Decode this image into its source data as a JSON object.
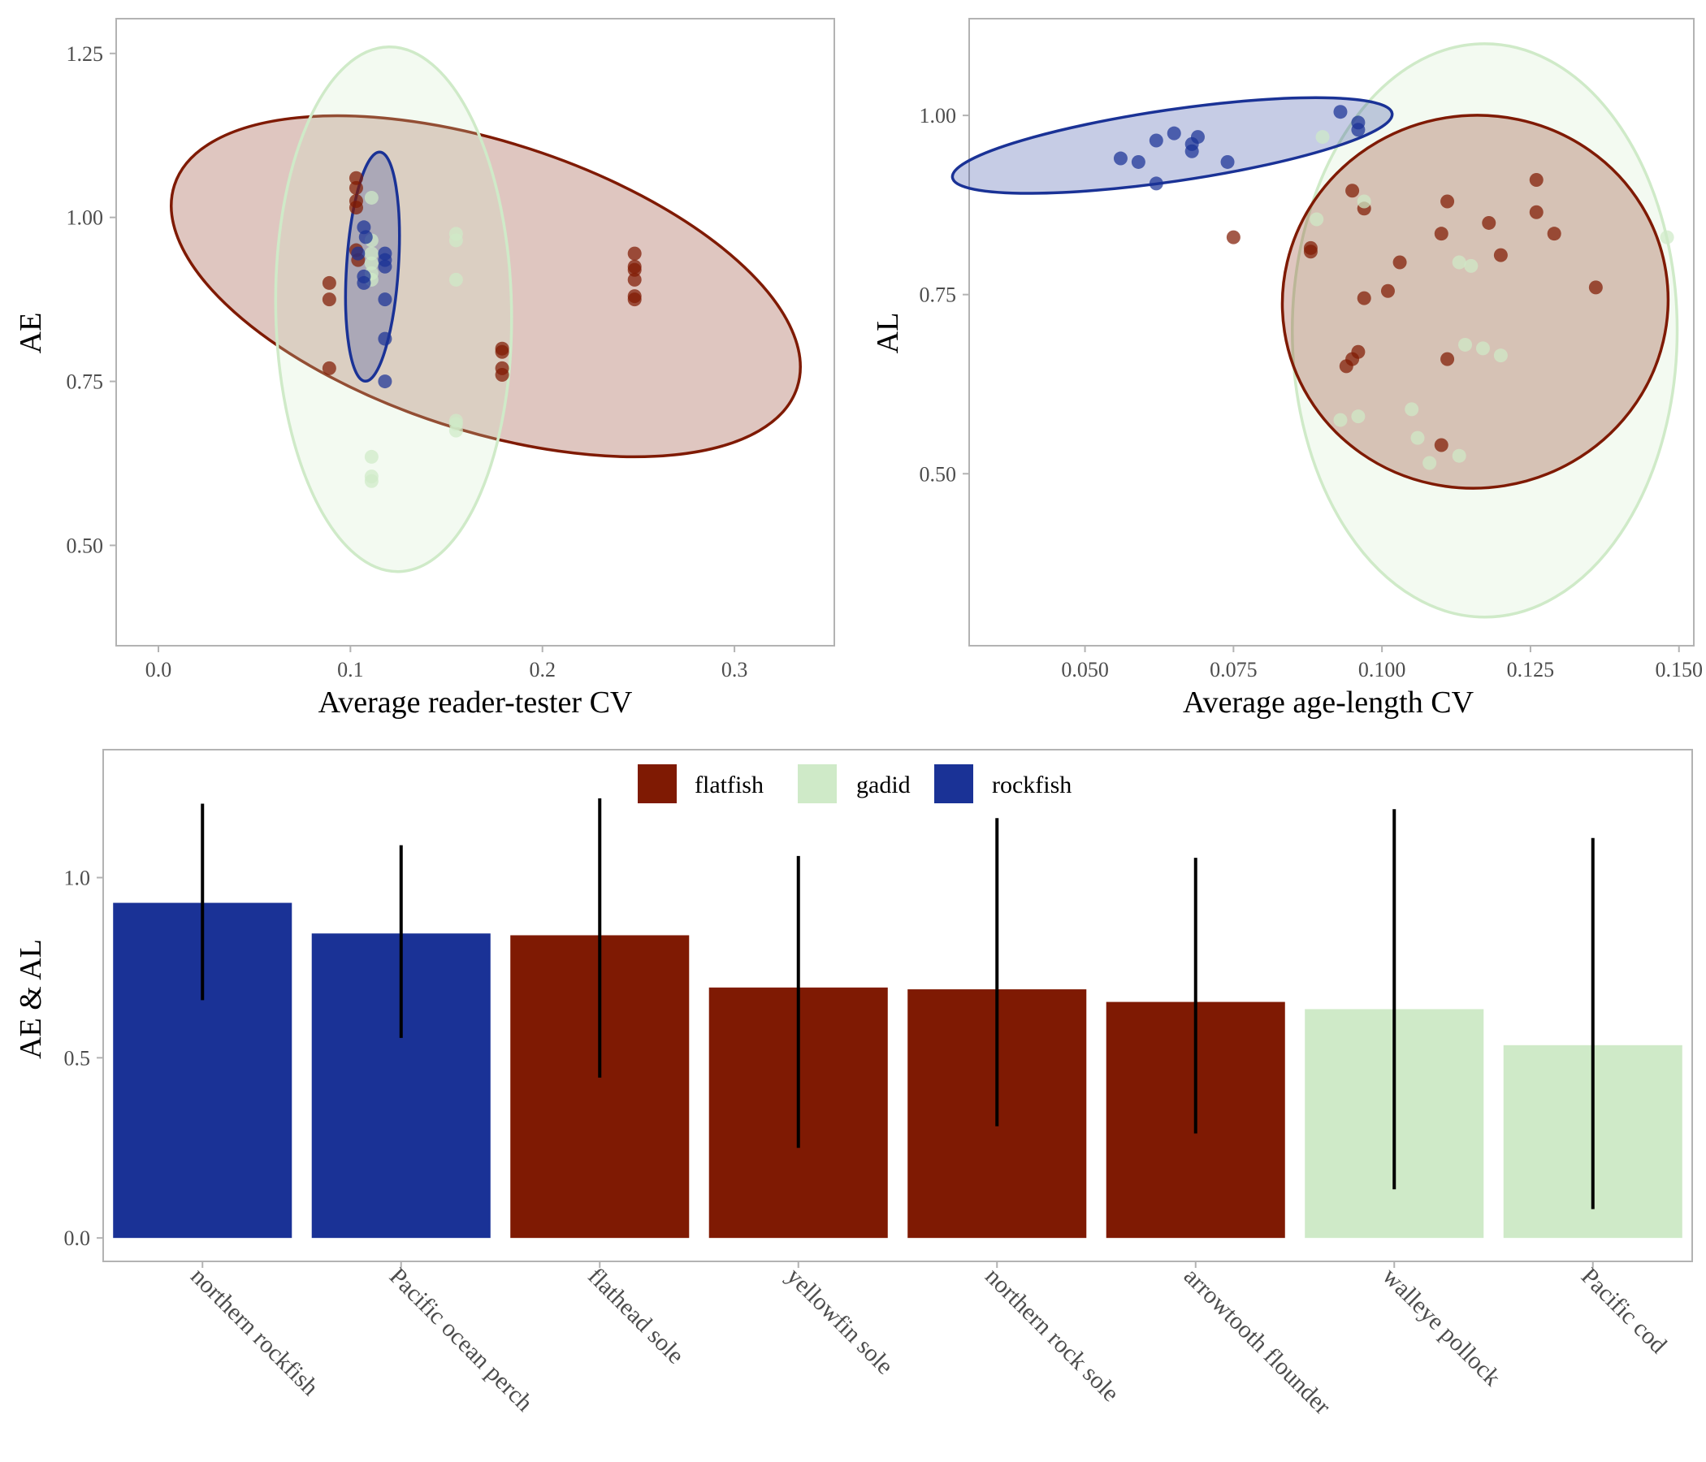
{
  "colors": {
    "flatfish": "#7f1a03",
    "gadid": "#cfeac8",
    "rockfish": "#1a3296",
    "panel_border": "#b3b3b3",
    "tick_label": "#4d4d4d",
    "error_bar": "#000000"
  },
  "chart_data": [
    {
      "type": "scatter",
      "xlabel": "Average reader-tester CV",
      "ylabel": "AE",
      "xlim": [
        -0.022,
        0.352
      ],
      "ylim": [
        0.347,
        1.303
      ],
      "xticks": [
        0.0,
        0.1,
        0.2,
        0.3
      ],
      "xtick_labels": [
        "0.0",
        "0.1",
        "0.2",
        "0.3"
      ],
      "yticks": [
        0.5,
        0.75,
        1.0,
        1.25
      ],
      "ytick_labels": [
        "0.50",
        "0.75",
        "1.00",
        "1.25"
      ],
      "grid": false,
      "ellipses": [
        {
          "group": "flatfish",
          "cx": 0.1705,
          "cy": 0.895,
          "rx": 0.1705,
          "ry": 0.22,
          "angle_deg": 18
        },
        {
          "group": "gadid",
          "cx": 0.1225,
          "cy": 0.86,
          "rx": 0.0614,
          "ry": 0.4,
          "angle_deg": -1.1
        },
        {
          "group": "rockfish",
          "cx": 0.1115,
          "cy": 0.925,
          "rx": 0.0135,
          "ry": 0.175,
          "angle_deg": 3.7
        }
      ],
      "series": [
        {
          "name": "flatfish",
          "points": [
            [
              0.089,
              0.9
            ],
            [
              0.089,
              0.875
            ],
            [
              0.089,
              0.77
            ],
            [
              0.103,
              1.06
            ],
            [
              0.103,
              1.045
            ],
            [
              0.103,
              1.025
            ],
            [
              0.103,
              1.015
            ],
            [
              0.103,
              0.95
            ],
            [
              0.104,
              0.935
            ],
            [
              0.179,
              0.8
            ],
            [
              0.179,
              0.795
            ],
            [
              0.179,
              0.77
            ],
            [
              0.179,
              0.76
            ],
            [
              0.248,
              0.945
            ],
            [
              0.248,
              0.925
            ],
            [
              0.248,
              0.92
            ],
            [
              0.248,
              0.905
            ],
            [
              0.248,
              0.88
            ],
            [
              0.248,
              0.875
            ]
          ]
        },
        {
          "name": "gadid",
          "points": [
            [
              0.111,
              1.03
            ],
            [
              0.111,
              0.965
            ],
            [
              0.111,
              0.945
            ],
            [
              0.111,
              0.93
            ],
            [
              0.111,
              0.915
            ],
            [
              0.111,
              0.905
            ],
            [
              0.111,
              0.635
            ],
            [
              0.111,
              0.605
            ],
            [
              0.111,
              0.598
            ],
            [
              0.155,
              0.975
            ],
            [
              0.155,
              0.965
            ],
            [
              0.155,
              0.905
            ],
            [
              0.155,
              0.69
            ],
            [
              0.155,
              0.685
            ],
            [
              0.155,
              0.675
            ]
          ]
        },
        {
          "name": "rockfish",
          "points": [
            [
              0.107,
              0.985
            ],
            [
              0.108,
              0.97
            ],
            [
              0.104,
              0.945
            ],
            [
              0.118,
              0.945
            ],
            [
              0.118,
              0.935
            ],
            [
              0.118,
              0.925
            ],
            [
              0.107,
              0.91
            ],
            [
              0.107,
              0.9
            ],
            [
              0.118,
              0.875
            ],
            [
              0.118,
              0.815
            ],
            [
              0.118,
              0.75
            ]
          ]
        }
      ]
    },
    {
      "type": "scatter",
      "xlabel": "Average age-length CV",
      "ylabel": "AL",
      "xlim": [
        0.0305,
        0.1525
      ],
      "ylim": [
        0.26,
        1.135
      ],
      "xticks": [
        0.05,
        0.075,
        0.1,
        0.125,
        0.15
      ],
      "xtick_labels": [
        "0.050",
        "0.075",
        "0.100",
        "0.125",
        "0.150"
      ],
      "yticks": [
        0.5,
        0.75,
        1.0
      ],
      "ytick_labels": [
        "0.50",
        "0.75",
        "1.00"
      ],
      "grid": false,
      "ellipses": [
        {
          "group": "gadid",
          "cx": 0.1173,
          "cy": 0.7,
          "rx": 0.0324,
          "ry": 0.4,
          "angle_deg": 0
        },
        {
          "group": "flatfish",
          "cx": 0.1157,
          "cy": 0.74,
          "rx": 0.0325,
          "ry": 0.26,
          "angle_deg": -9
        },
        {
          "group": "rockfish",
          "cx": 0.0647,
          "cy": 0.958,
          "rx": 0.0374,
          "ry": 0.05,
          "angle_deg": -8.3
        }
      ],
      "series": [
        {
          "name": "flatfish",
          "points": [
            [
              0.075,
              0.83
            ],
            [
              0.088,
              0.81
            ],
            [
              0.088,
              0.815
            ],
            [
              0.095,
              0.895
            ],
            [
              0.097,
              0.87
            ],
            [
              0.111,
              0.88
            ],
            [
              0.126,
              0.91
            ],
            [
              0.126,
              0.865
            ],
            [
              0.118,
              0.85
            ],
            [
              0.11,
              0.835
            ],
            [
              0.129,
              0.835
            ],
            [
              0.103,
              0.795
            ],
            [
              0.12,
              0.805
            ],
            [
              0.101,
              0.755
            ],
            [
              0.097,
              0.745
            ],
            [
              0.136,
              0.76
            ],
            [
              0.096,
              0.67
            ],
            [
              0.094,
              0.65
            ],
            [
              0.095,
              0.66
            ],
            [
              0.111,
              0.66
            ],
            [
              0.11,
              0.54
            ]
          ]
        },
        {
          "name": "gadid",
          "points": [
            [
              0.089,
              0.855
            ],
            [
              0.09,
              0.97
            ],
            [
              0.097,
              0.88
            ],
            [
              0.113,
              0.795
            ],
            [
              0.115,
              0.79
            ],
            [
              0.148,
              0.83
            ],
            [
              0.114,
              0.68
            ],
            [
              0.117,
              0.675
            ],
            [
              0.12,
              0.665
            ],
            [
              0.105,
              0.59
            ],
            [
              0.093,
              0.575
            ],
            [
              0.096,
              0.58
            ],
            [
              0.106,
              0.55
            ],
            [
              0.108,
              0.515
            ],
            [
              0.113,
              0.525
            ]
          ]
        },
        {
          "name": "rockfish",
          "points": [
            [
              0.056,
              0.94
            ],
            [
              0.059,
              0.935
            ],
            [
              0.062,
              0.965
            ],
            [
              0.065,
              0.975
            ],
            [
              0.068,
              0.96
            ],
            [
              0.068,
              0.95
            ],
            [
              0.069,
              0.97
            ],
            [
              0.062,
              0.905
            ],
            [
              0.074,
              0.935
            ],
            [
              0.093,
              1.005
            ],
            [
              0.096,
              0.99
            ],
            [
              0.096,
              0.98
            ]
          ]
        }
      ]
    },
    {
      "type": "bar",
      "ylabel": "AE & AL",
      "ylim": [
        -0.065,
        1.355
      ],
      "yticks": [
        0.0,
        0.5,
        1.0
      ],
      "ytick_labels": [
        "0.0",
        "0.5",
        "1.0"
      ],
      "legend": [
        "flatfish",
        "gadid",
        "rockfish"
      ],
      "legend_position": "top",
      "grid": false,
      "categories": [
        "northern rockfish",
        "Pacific ocean perch",
        "flathead sole",
        "yellowfin sole",
        "northern rock sole",
        "arrowtooth flounder",
        "walleye pollock",
        "Pacific cod"
      ],
      "groups": [
        "rockfish",
        "rockfish",
        "flatfish",
        "flatfish",
        "flatfish",
        "flatfish",
        "gadid",
        "gadid"
      ],
      "values": [
        0.93,
        0.845,
        0.84,
        0.695,
        0.69,
        0.655,
        0.635,
        0.535
      ],
      "error_low": [
        0.66,
        0.555,
        0.445,
        0.25,
        0.31,
        0.29,
        0.135,
        0.08
      ],
      "error_high": [
        1.205,
        1.09,
        1.22,
        1.06,
        1.165,
        1.055,
        1.19,
        1.11
      ]
    }
  ]
}
